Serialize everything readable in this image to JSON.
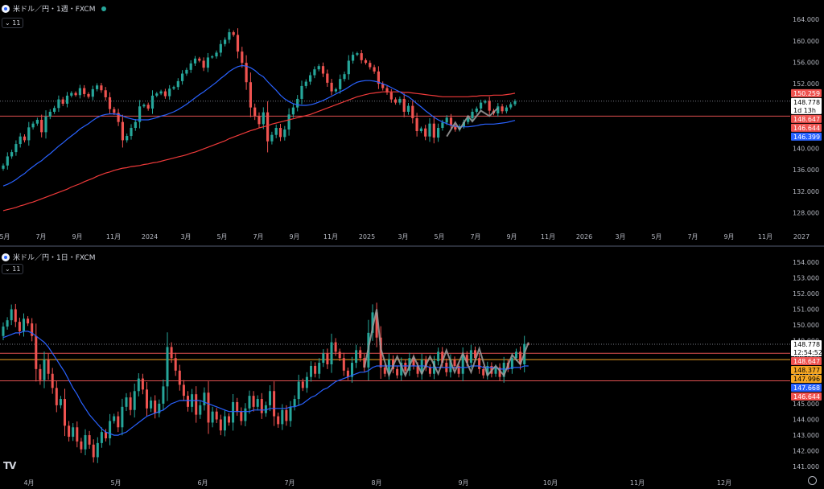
{
  "panels": [
    {
      "title": "米ドル／円・1週・FXCM",
      "indicator_badge": "11"
    },
    {
      "title": "米ドル／円・1日・FXCM",
      "indicator_badge": "11"
    }
  ],
  "colors": {
    "up": "#26a69a",
    "down": "#ef5350",
    "ma_fast": "#2962ff",
    "ma_slow": "#ef3a3a",
    "zigzag": "#9e9e9e",
    "h_line": "#e05050",
    "h_line_orange": "#f5a623",
    "grid_dot": "#787b86"
  },
  "chart_data": [
    {
      "type": "candlestick",
      "timeframe": "1週",
      "y_ticks": [
        "164.000",
        "160.000",
        "156.000",
        "152.000",
        "148.000",
        "144.000",
        "140.000",
        "136.000",
        "132.000",
        "128.000"
      ],
      "ylim": [
        124.8,
        165.5
      ],
      "x_ticks": [
        "5月",
        "7月",
        "9月",
        "11月",
        "2024",
        "3月",
        "5月",
        "7月",
        "9月",
        "11月",
        "2025",
        "3月",
        "5月",
        "7月",
        "9月",
        "11月",
        "2026",
        "3月",
        "5月",
        "7月",
        "9月",
        "11月",
        "2027"
      ],
      "price_labels": [
        {
          "value": "150.259",
          "price": 150.259,
          "color": "#ef5350",
          "text": "#ffffff"
        },
        {
          "value": "148.778",
          "price": 148.778,
          "color": "#ffffff",
          "text": "#000000",
          "sub": "1d 13h"
        },
        {
          "value": "148.647",
          "price": 146.0,
          "color": "#ef5350",
          "text": "#ffffff"
        },
        {
          "value": "146.644",
          "price": 144.7,
          "color": "#ef5350",
          "text": "#ffffff"
        },
        {
          "value": "146.399",
          "price": 143.4,
          "color": "#2962ff",
          "text": "#ffffff"
        }
      ],
      "closes": [
        136.8,
        138.5,
        139.3,
        140.8,
        142.2,
        141.5,
        143.9,
        144.6,
        145.3,
        143.0,
        145.9,
        146.8,
        147.5,
        149.1,
        148.3,
        149.8,
        150.3,
        149.9,
        151.2,
        150.1,
        149.6,
        151.0,
        151.7,
        150.8,
        149.5,
        147.3,
        146.6,
        144.9,
        141.5,
        142.3,
        143.8,
        144.9,
        147.8,
        148.1,
        147.4,
        149.8,
        150.2,
        150.6,
        149.7,
        151.1,
        151.4,
        152.5,
        153.9,
        154.6,
        155.8,
        156.7,
        156.3,
        155.0,
        156.9,
        157.1,
        157.8,
        159.4,
        160.2,
        161.6,
        161.1,
        158.0,
        155.9,
        152.3,
        147.6,
        146.0,
        144.5,
        146.7,
        141.3,
        142.5,
        143.8,
        142.1,
        143.5,
        146.3,
        147.6,
        149.2,
        151.6,
        152.4,
        153.6,
        154.7,
        155.3,
        153.9,
        152.2,
        150.6,
        151.0,
        152.9,
        153.8,
        156.3,
        157.4,
        157.7,
        156.4,
        155.9,
        155.1,
        154.3,
        152.0,
        151.2,
        150.4,
        149.1,
        148.5,
        149.2,
        146.8,
        147.9,
        145.6,
        143.2,
        143.7,
        142.2,
        144.6,
        142.0,
        143.8,
        144.8,
        145.7,
        144.2,
        143.5,
        144.1,
        144.9,
        145.6,
        146.8,
        147.4,
        148.5,
        148.8,
        147.0,
        146.5,
        147.8,
        146.9,
        147.6,
        148.2,
        148.778
      ],
      "ma_fast": [
        133.0,
        133.3,
        133.7,
        134.2,
        134.8,
        135.3,
        136.0,
        136.6,
        137.2,
        137.7,
        138.4,
        139.0,
        139.7,
        140.4,
        141.0,
        141.7,
        142.3,
        142.9,
        143.6,
        144.1,
        144.6,
        145.2,
        145.7,
        146.1,
        146.3,
        146.4,
        146.4,
        146.3,
        146.0,
        145.7,
        145.5,
        145.3,
        145.3,
        145.3,
        145.3,
        145.5,
        145.7,
        146.0,
        146.2,
        146.5,
        146.8,
        147.2,
        147.7,
        148.2,
        148.8,
        149.4,
        150.0,
        150.5,
        151.1,
        151.7,
        152.3,
        153.0,
        153.6,
        154.3,
        154.8,
        155.2,
        155.4,
        155.3,
        155.0,
        154.5,
        153.8,
        153.3,
        152.4,
        151.6,
        150.8,
        149.9,
        149.2,
        148.7,
        148.3,
        148.1,
        148.0,
        148.0,
        148.1,
        148.3,
        148.6,
        148.9,
        149.3,
        149.7,
        150.1,
        150.5,
        150.9,
        151.4,
        151.9,
        152.3,
        152.5,
        152.6,
        152.6,
        152.5,
        152.3,
        152.0,
        151.7,
        151.3,
        150.9,
        150.5,
        150.0,
        149.6,
        149.0,
        148.3,
        147.7,
        147.0,
        146.4,
        145.8,
        145.3,
        144.9,
        144.6,
        144.3,
        144.1,
        144.0,
        144.0,
        144.0,
        144.1,
        144.2,
        144.4,
        144.5,
        144.5,
        144.5,
        144.6,
        144.7,
        144.8,
        145.0,
        145.2
      ],
      "ma_slow": [
        128.4,
        128.6,
        128.8,
        129.0,
        129.3,
        129.5,
        129.8,
        130.0,
        130.3,
        130.6,
        130.9,
        131.2,
        131.5,
        131.8,
        132.1,
        132.4,
        132.8,
        133.1,
        133.4,
        133.8,
        134.1,
        134.4,
        134.8,
        135.1,
        135.4,
        135.6,
        135.9,
        136.1,
        136.3,
        136.4,
        136.6,
        136.7,
        136.8,
        137.0,
        137.1,
        137.3,
        137.4,
        137.6,
        137.8,
        138.0,
        138.2,
        138.4,
        138.6,
        138.8,
        139.1,
        139.3,
        139.6,
        139.9,
        140.2,
        140.5,
        140.8,
        141.1,
        141.4,
        141.8,
        142.1,
        142.4,
        142.7,
        143.0,
        143.3,
        143.5,
        143.8,
        144.0,
        144.2,
        144.5,
        144.7,
        144.9,
        145.1,
        145.3,
        145.5,
        145.7,
        145.9,
        146.1,
        146.3,
        146.6,
        146.9,
        147.2,
        147.5,
        147.8,
        148.1,
        148.4,
        148.7,
        149.0,
        149.3,
        149.6,
        149.8,
        150.0,
        150.2,
        150.3,
        150.4,
        150.5,
        150.5,
        150.5,
        150.5,
        150.5,
        150.4,
        150.4,
        150.3,
        150.2,
        150.1,
        150.0,
        149.9,
        149.8,
        149.7,
        149.6,
        149.6,
        149.6,
        149.6,
        149.6,
        149.6,
        149.6,
        149.7,
        149.7,
        149.8,
        149.8,
        149.8,
        149.9,
        149.9,
        149.9,
        150.0,
        150.1,
        150.259
      ],
      "zigzag": [
        [
          104,
          142.2
        ],
        [
          106,
          144.8
        ],
        [
          107,
          143.5
        ],
        [
          109,
          146.0
        ],
        [
          110,
          145.0
        ],
        [
          112,
          147.0
        ],
        [
          114,
          146.0
        ],
        [
          116,
          147.5
        ]
      ],
      "h_lines": [
        {
          "price": 146.0,
          "color": "#e05050"
        }
      ]
    },
    {
      "type": "candlestick",
      "timeframe": "1日",
      "y_ticks": [
        "154.000",
        "153.000",
        "152.000",
        "151.000",
        "150.000",
        "149.000",
        "148.000",
        "147.000",
        "146.000",
        "145.000",
        "144.000",
        "143.000",
        "142.000",
        "141.000"
      ],
      "ylim": [
        140.5,
        154.5
      ],
      "x_ticks": [
        "4月",
        "5月",
        "6月",
        "7月",
        "8月",
        "9月",
        "10月",
        "11月",
        "12月"
      ],
      "price_labels": [
        {
          "value": "148.778",
          "price": 148.778,
          "color": "#ffffff",
          "text": "#000000",
          "sub": "12:54:52"
        },
        {
          "value": "148.647",
          "price": 148.2,
          "color": "#ef5350",
          "text": "#ffffff"
        },
        {
          "value": "148.377",
          "price": 147.8,
          "color": "#f5a623",
          "text": "#000000"
        },
        {
          "value": "147.996",
          "price": 147.35,
          "color": "#f5a623",
          "text": "#000000"
        },
        {
          "value": "147.668",
          "price": 146.9,
          "color": "#2962ff",
          "text": "#ffffff"
        },
        {
          "value": "146.644",
          "price": 146.45,
          "color": "#ef5350",
          "text": "#ffffff"
        }
      ],
      "closes": [
        149.9,
        150.3,
        151.0,
        150.2,
        149.6,
        150.4,
        150.1,
        149.3,
        147.2,
        146.5,
        147.8,
        146.9,
        146.0,
        144.9,
        145.3,
        143.6,
        142.9,
        143.5,
        142.6,
        142.1,
        143.0,
        142.4,
        141.6,
        142.5,
        143.2,
        142.8,
        143.9,
        144.2,
        143.5,
        144.8,
        145.4,
        144.6,
        145.8,
        146.6,
        145.9,
        144.7,
        145.2,
        144.4,
        145.0,
        146.1,
        148.6,
        147.9,
        147.1,
        146.2,
        145.5,
        144.8,
        145.6,
        144.3,
        144.9,
        145.7,
        143.8,
        144.5,
        144.0,
        143.3,
        144.2,
        143.8,
        145.1,
        144.5,
        143.9,
        144.7,
        145.5,
        144.8,
        145.3,
        144.4,
        144.9,
        145.8,
        144.2,
        143.7,
        144.6,
        143.9,
        144.8,
        145.3,
        146.4,
        146.0,
        146.7,
        147.4,
        146.9,
        147.6,
        148.2,
        147.5,
        148.9,
        148.3,
        147.9,
        147.1,
        146.7,
        147.6,
        148.4,
        147.9,
        147.3,
        149.5,
        150.8,
        149.2,
        147.3,
        146.9,
        147.8,
        147.2,
        146.8,
        147.6,
        147.1,
        147.9,
        147.4,
        146.9,
        147.8,
        147.3,
        146.9,
        147.7,
        148.3,
        147.6,
        147.0,
        147.8,
        147.4,
        146.9,
        148.1,
        147.6,
        148.4,
        147.9,
        147.2,
        146.8,
        147.4,
        146.9,
        147.3,
        146.7,
        147.6,
        147.2,
        147.9,
        148.3,
        147.5,
        148.8,
        148.778
      ],
      "ma_fast": [
        149.2,
        149.3,
        149.4,
        149.5,
        149.5,
        149.6,
        149.6,
        149.5,
        149.3,
        149.1,
        148.9,
        148.6,
        148.2,
        147.8,
        147.4,
        147.0,
        146.5,
        146.0,
        145.6,
        145.1,
        144.7,
        144.3,
        144.0,
        143.7,
        143.4,
        143.2,
        143.1,
        143.0,
        143.0,
        143.1,
        143.2,
        143.4,
        143.6,
        143.8,
        144.0,
        144.2,
        144.3,
        144.4,
        144.5,
        144.6,
        144.8,
        145.0,
        145.1,
        145.2,
        145.2,
        145.2,
        145.2,
        145.2,
        145.2,
        145.1,
        145.0,
        144.9,
        144.8,
        144.7,
        144.6,
        144.5,
        144.5,
        144.5,
        144.5,
        144.5,
        144.5,
        144.6,
        144.6,
        144.6,
        144.6,
        144.7,
        144.7,
        144.7,
        144.7,
        144.7,
        144.8,
        144.8,
        144.9,
        145.0,
        145.2,
        145.4,
        145.5,
        145.7,
        145.9,
        146.0,
        146.2,
        146.4,
        146.5,
        146.6,
        146.7,
        146.8,
        146.9,
        147.0,
        147.0,
        147.1,
        147.3,
        147.4,
        147.4,
        147.4,
        147.4,
        147.4,
        147.4,
        147.4,
        147.4,
        147.4,
        147.4,
        147.4,
        147.4,
        147.4,
        147.3,
        147.3,
        147.3,
        147.3,
        147.3,
        147.3,
        147.3,
        147.3,
        147.3,
        147.3,
        147.4,
        147.4,
        147.4,
        147.3,
        147.3,
        147.3,
        147.3,
        147.2,
        147.2,
        147.2,
        147.3,
        147.3,
        147.3,
        147.4,
        147.4
      ],
      "zigzag": [
        [
          88,
          147.3
        ],
        [
          90,
          149.8
        ],
        [
          91,
          151.0
        ],
        [
          92,
          148.5
        ],
        [
          94,
          146.8
        ],
        [
          96,
          148.0
        ],
        [
          98,
          146.8
        ],
        [
          100,
          148.0
        ],
        [
          102,
          146.9
        ],
        [
          104,
          148.0
        ],
        [
          106,
          146.9
        ],
        [
          108,
          148.4
        ],
        [
          110,
          147.0
        ],
        [
          112,
          148.2
        ],
        [
          114,
          147.0
        ],
        [
          116,
          148.5
        ],
        [
          118,
          146.8
        ],
        [
          120,
          147.4
        ],
        [
          122,
          146.8
        ],
        [
          124,
          148.1
        ],
        [
          126,
          147.5
        ],
        [
          128,
          148.9
        ]
      ],
      "h_lines": [
        {
          "price": 148.2,
          "color": "#e05050"
        },
        {
          "price": 147.8,
          "color": "#f5a623"
        },
        {
          "price": 146.45,
          "color": "#e05050"
        }
      ]
    }
  ]
}
